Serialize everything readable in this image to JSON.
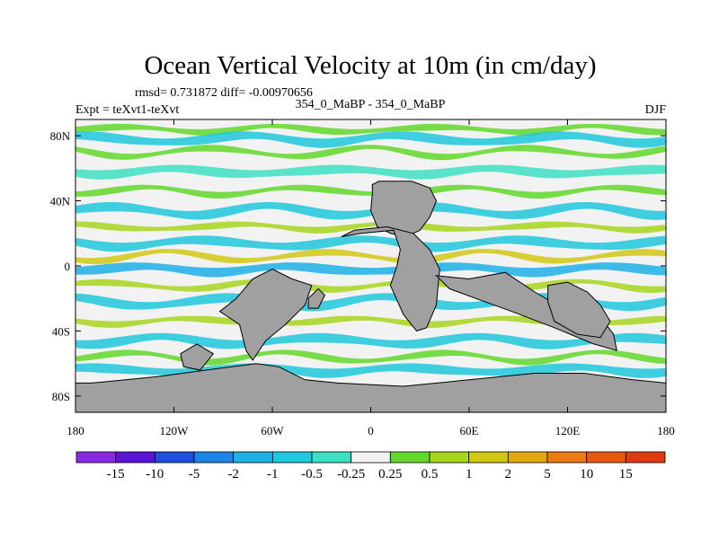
{
  "chart_data": {
    "type": "heatmap",
    "title": "Ocean Vertical Velocity at 10m (in cm/day)",
    "stats_text": "rmsd= 0.731872  diff= -0.00970656",
    "left_label": "Expt = teXvt1-teXvt",
    "center_label": "354_0_MaBP - 354_0_MaBP",
    "right_label": "DJF",
    "x_axis": {
      "range": [
        -180,
        180
      ],
      "ticks": [
        -180,
        -120,
        -60,
        0,
        60,
        120,
        180
      ],
      "tick_labels": [
        "180",
        "120W",
        "60W",
        "0",
        "60E",
        "120E",
        "180"
      ]
    },
    "y_axis": {
      "range": [
        -90,
        90
      ],
      "ticks": [
        80,
        40,
        0,
        -40,
        -80
      ],
      "tick_labels": [
        "80N",
        "40N",
        "0",
        "40S",
        "80S"
      ]
    },
    "colorbar": {
      "labels": [
        "-15",
        "-10",
        "-5",
        "-2",
        "-1",
        "-0.5",
        "-0.25",
        "0.25",
        "0.5",
        "1",
        "2",
        "5",
        "10",
        "15"
      ],
      "colors": [
        "#8a2be2",
        "#5a14d6",
        "#1f4fe0",
        "#1f84e8",
        "#1fb0e8",
        "#1fc8dc",
        "#3ee0c4",
        "#f2f2f2",
        "#62d82a",
        "#a8d61c",
        "#d2c814",
        "#e4a814",
        "#ec7c12",
        "#e85a10",
        "#e03a10"
      ]
    },
    "land_color": "#a0a0a0",
    "land_regions": [
      {
        "name": "Eurasia-north",
        "lon_lat": [
          [
            1,
            44
          ],
          [
            1,
            50
          ],
          [
            5,
            52
          ],
          [
            25,
            52
          ],
          [
            36,
            48
          ],
          [
            40,
            40
          ],
          [
            36,
            30
          ],
          [
            30,
            22
          ],
          [
            22,
            18
          ],
          [
            12,
            20
          ],
          [
            4,
            24
          ],
          [
            0,
            34
          ]
        ]
      },
      {
        "name": "Africa",
        "lon_lat": [
          [
            -18,
            18
          ],
          [
            -6,
            20
          ],
          [
            14,
            22
          ],
          [
            18,
            10
          ],
          [
            16,
            0
          ],
          [
            12,
            -12
          ],
          [
            20,
            -30
          ],
          [
            28,
            -40
          ],
          [
            34,
            -38
          ],
          [
            40,
            -24
          ],
          [
            42,
            -2
          ],
          [
            36,
            10
          ],
          [
            26,
            20
          ],
          [
            10,
            24
          ],
          [
            -10,
            22
          ]
        ]
      },
      {
        "name": "South-America",
        "lon_lat": [
          [
            -92,
            -28
          ],
          [
            -82,
            -20
          ],
          [
            -72,
            -8
          ],
          [
            -60,
            -2
          ],
          [
            -48,
            -8
          ],
          [
            -36,
            -12
          ],
          [
            -40,
            -24
          ],
          [
            -52,
            -36
          ],
          [
            -64,
            -46
          ],
          [
            -72,
            -58
          ],
          [
            -76,
            -52
          ],
          [
            -80,
            -36
          ]
        ]
      },
      {
        "name": "India-SEAsia",
        "lon_lat": [
          [
            40,
            -6
          ],
          [
            60,
            -8
          ],
          [
            82,
            -4
          ],
          [
            100,
            -16
          ],
          [
            120,
            -28
          ],
          [
            136,
            -26
          ],
          [
            148,
            -42
          ],
          [
            150,
            -52
          ],
          [
            136,
            -48
          ],
          [
            112,
            -38
          ],
          [
            86,
            -28
          ],
          [
            64,
            -20
          ],
          [
            48,
            -14
          ]
        ]
      },
      {
        "name": "Australia",
        "lon_lat": [
          [
            108,
            -12
          ],
          [
            120,
            -10
          ],
          [
            132,
            -16
          ],
          [
            140,
            -24
          ],
          [
            146,
            -34
          ],
          [
            140,
            -44
          ],
          [
            126,
            -42
          ],
          [
            112,
            -34
          ],
          [
            108,
            -22
          ]
        ]
      },
      {
        "name": "Antarctica",
        "lon_lat": [
          [
            -170,
            -72
          ],
          [
            -130,
            -68
          ],
          [
            -100,
            -64
          ],
          [
            -70,
            -60
          ],
          [
            -56,
            -62
          ],
          [
            -40,
            -70
          ],
          [
            -20,
            -72
          ],
          [
            20,
            -74
          ],
          [
            60,
            -70
          ],
          [
            100,
            -66
          ],
          [
            130,
            -66
          ],
          [
            160,
            -70
          ],
          [
            180,
            -72
          ],
          [
            180,
            -90
          ],
          [
            -180,
            -90
          ],
          [
            -180,
            -72
          ]
        ]
      },
      {
        "name": "Mid-island-A",
        "lon_lat": [
          [
            -38,
            -20
          ],
          [
            -32,
            -14
          ],
          [
            -28,
            -18
          ],
          [
            -32,
            -26
          ],
          [
            -38,
            -26
          ]
        ]
      },
      {
        "name": "Mid-island-B",
        "lon_lat": [
          [
            -116,
            -54
          ],
          [
            -106,
            -48
          ],
          [
            -96,
            -54
          ],
          [
            -104,
            -64
          ],
          [
            -114,
            -62
          ]
        ]
      }
    ],
    "bands": [
      {
        "lat": 84,
        "sign": 1,
        "level": 1
      },
      {
        "lat": 78,
        "sign": -1,
        "level": 2
      },
      {
        "lat": 70,
        "sign": 1,
        "level": 1
      },
      {
        "lat": 58,
        "sign": -1,
        "level": 1
      },
      {
        "lat": 46,
        "sign": 1,
        "level": 1
      },
      {
        "lat": 34,
        "sign": -1,
        "level": 2
      },
      {
        "lat": 24,
        "sign": 1,
        "level": 2
      },
      {
        "lat": 14,
        "sign": -1,
        "level": 2
      },
      {
        "lat": 6,
        "sign": 1,
        "level": 3
      },
      {
        "lat": -2,
        "sign": -1,
        "level": 3
      },
      {
        "lat": -12,
        "sign": 1,
        "level": 2
      },
      {
        "lat": -22,
        "sign": -1,
        "level": 2
      },
      {
        "lat": -34,
        "sign": 1,
        "level": 2
      },
      {
        "lat": -46,
        "sign": -1,
        "level": 2
      },
      {
        "lat": -56,
        "sign": 1,
        "level": 1
      },
      {
        "lat": -64,
        "sign": -1,
        "level": 2
      }
    ]
  }
}
